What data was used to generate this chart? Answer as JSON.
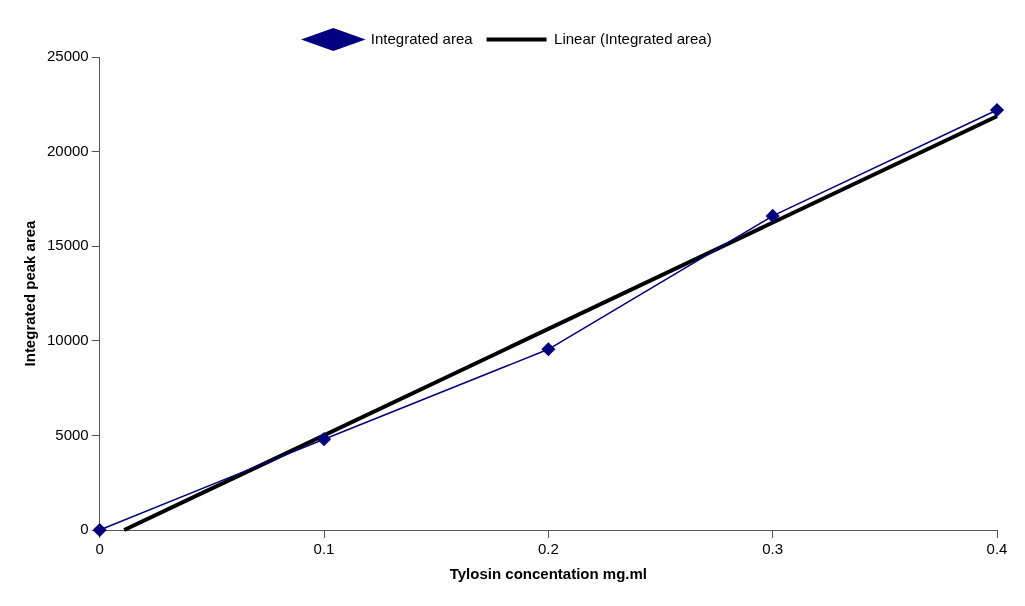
{
  "chart_data": {
    "type": "line",
    "xlabel": "Tylosin concentation mg.ml",
    "ylabel": "Integrated peak area",
    "x": [
      0,
      0.1,
      0.2,
      0.3,
      0.4
    ],
    "series": [
      {
        "name": "Integrated area",
        "color": "#000080",
        "values": [
          0,
          4800,
          9550,
          16600,
          22200
        ],
        "marker": "diamond"
      },
      {
        "name": "Linear (Integrated area)",
        "color": "#000000",
        "x": [
          0.0109,
          0.4
        ],
        "values": [
          0,
          21870
        ],
        "marker": "none"
      }
    ],
    "xlim": [
      0,
      0.4
    ],
    "xticks": [
      0,
      0.1,
      0.2,
      0.3,
      0.4
    ],
    "ylim": [
      0,
      25000
    ],
    "yticks": [
      0,
      5000,
      10000,
      15000,
      20000,
      25000
    ],
    "grid": false,
    "legend": "top"
  }
}
